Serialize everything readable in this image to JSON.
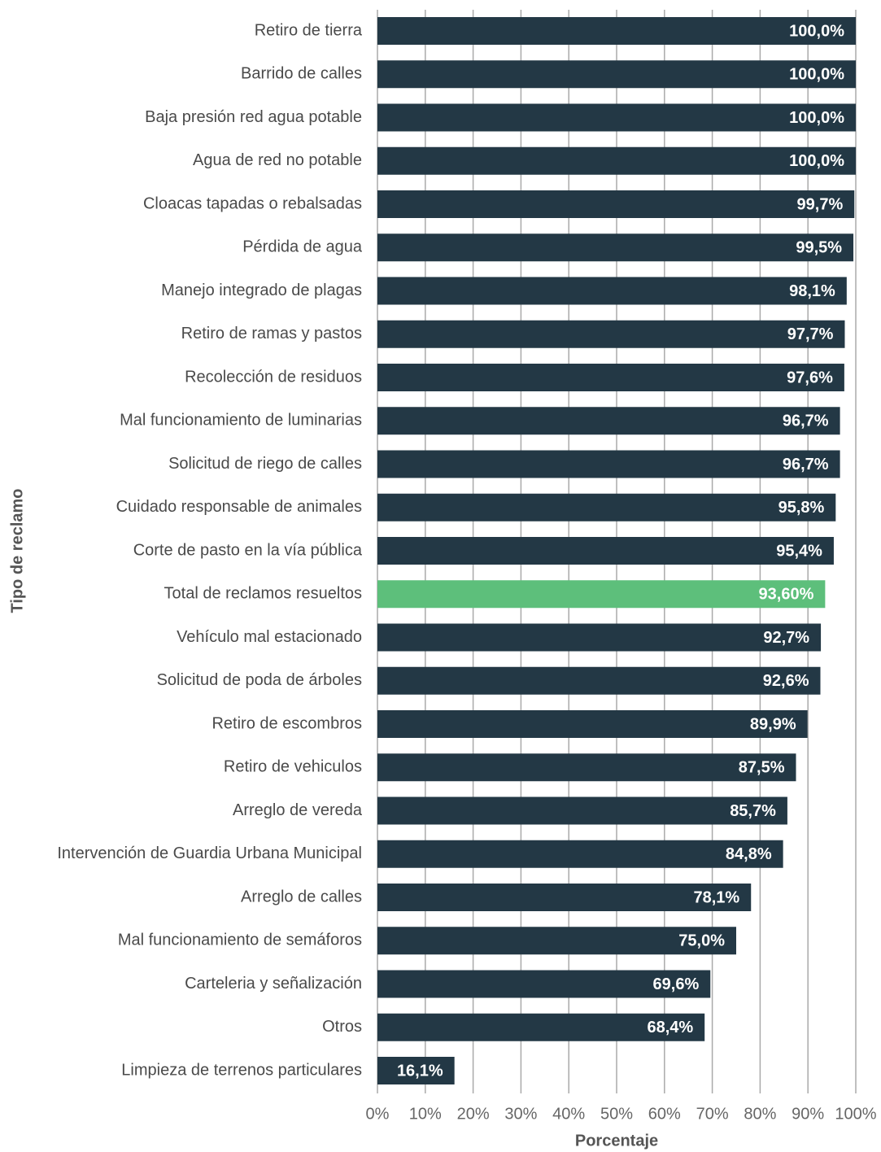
{
  "chart_data": {
    "type": "barh",
    "xlabel": "Porcentaje",
    "ylabel": "Tipo de reclamo",
    "categories": [
      "Retiro de tierra",
      "Barrido de calles",
      "Baja presión red agua potable",
      "Agua de red no potable",
      "Cloacas tapadas o rebalsadas",
      "Pérdida de agua",
      "Manejo integrado de plagas",
      "Retiro de ramas y pastos",
      "Recolección de residuos",
      "Mal funcionamiento de luminarias",
      "Solicitud de riego de calles",
      "Cuidado responsable de animales",
      "Corte de pasto en la vía pública",
      "Total de reclamos resueltos",
      "Vehículo mal estacionado",
      "Solicitud de poda de árboles",
      "Retiro de escombros",
      "Retiro de vehiculos",
      "Arreglo de vereda",
      "Intervención de Guardia Urbana Municipal",
      "Arreglo de calles",
      "Mal funcionamiento de semáforos",
      "Carteleria y señalización",
      "Otros",
      "Limpieza de terrenos particulares"
    ],
    "values": [
      100,
      100,
      100,
      100,
      99.7,
      99.5,
      98.1,
      97.7,
      97.6,
      96.7,
      96.7,
      95.8,
      95.4,
      93.6,
      92.7,
      92.6,
      89.9,
      87.5,
      85.7,
      84.8,
      78.1,
      75.0,
      69.6,
      68.4,
      16.1
    ],
    "value_labels": [
      "100,0%",
      "100,0%",
      "100,0%",
      "100,0%",
      "99,7%",
      "99,5%",
      "98,1%",
      "97,7%",
      "97,6%",
      "96,7%",
      "96,7%",
      "95,8%",
      "95,4%",
      "93,60%",
      "92,7%",
      "92,6%",
      "89,9%",
      "87,5%",
      "85,7%",
      "84,8%",
      "78,1%",
      "75,0%",
      "69,6%",
      "68,4%",
      "16,1%"
    ],
    "colors": [
      "#233845",
      "#233845",
      "#233845",
      "#233845",
      "#233845",
      "#233845",
      "#233845",
      "#233845",
      "#233845",
      "#233845",
      "#233845",
      "#233845",
      "#233845",
      "#5dbf7b",
      "#233845",
      "#233845",
      "#233845",
      "#233845",
      "#233845",
      "#233845",
      "#233845",
      "#233845",
      "#233845",
      "#233845",
      "#233845"
    ],
    "xlim": [
      0,
      100
    ],
    "xticks": [
      {
        "value": 0,
        "label": "0%"
      },
      {
        "value": 10,
        "label": "10%"
      },
      {
        "value": 20,
        "label": "20%"
      },
      {
        "value": 30,
        "label": "30%"
      },
      {
        "value": 40,
        "label": "40%"
      },
      {
        "value": 50,
        "label": "50%"
      },
      {
        "value": 60,
        "label": "60%"
      },
      {
        "value": 70,
        "label": "70%"
      },
      {
        "value": 80,
        "label": "80%"
      },
      {
        "value": 90,
        "label": "90%"
      },
      {
        "value": 100,
        "label": "100%"
      }
    ],
    "grid": true
  }
}
